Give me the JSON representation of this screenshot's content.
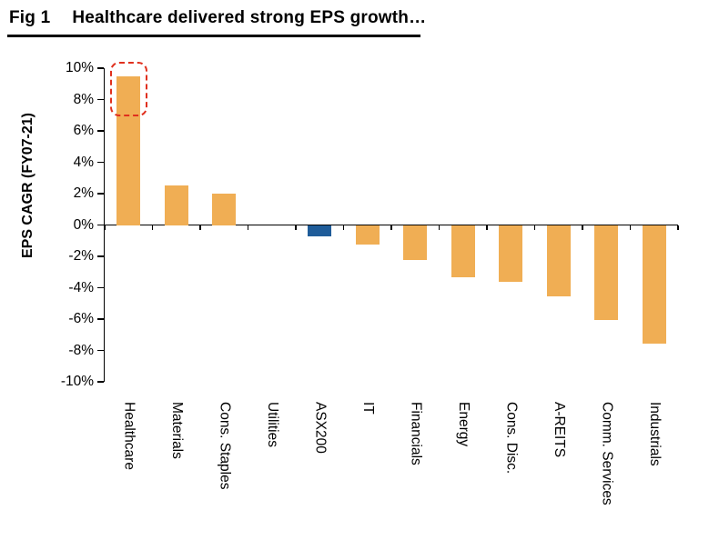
{
  "figure": {
    "label": "Fig 1",
    "title": "Healthcare delivered strong EPS growth…"
  },
  "chart_data": {
    "type": "bar",
    "title": "Healthcare delivered strong EPS growth…",
    "xlabel": "",
    "ylabel": "EPS CAGR (FY07-21)",
    "ylim": [
      -10,
      10
    ],
    "ytick_step": 2,
    "ytick_labels": [
      "10%",
      "8%",
      "6%",
      "4%",
      "2%",
      "0%",
      "-2%",
      "-4%",
      "-6%",
      "-8%",
      "-10%"
    ],
    "categories": [
      "Healthcare",
      "Materials",
      "Cons. Staples",
      "Utilities",
      "ASX200",
      "IT",
      "Financials",
      "Energy",
      "Cons. Disc.",
      "A-REITS",
      "Comm. Services",
      "Industrials"
    ],
    "values": [
      9.5,
      2.5,
      2.0,
      0.0,
      -0.7,
      -1.2,
      -2.2,
      -3.3,
      -3.6,
      -4.5,
      -6.0,
      -7.5
    ],
    "bar_color": "#F0AE54",
    "highlight_bar": {
      "category": "ASX200",
      "color": "#1F5C99"
    },
    "annotation": {
      "shape": "dashed-rounded-box",
      "category": "Healthcare",
      "color": "#E0301E"
    },
    "grid": false,
    "legend": false
  }
}
